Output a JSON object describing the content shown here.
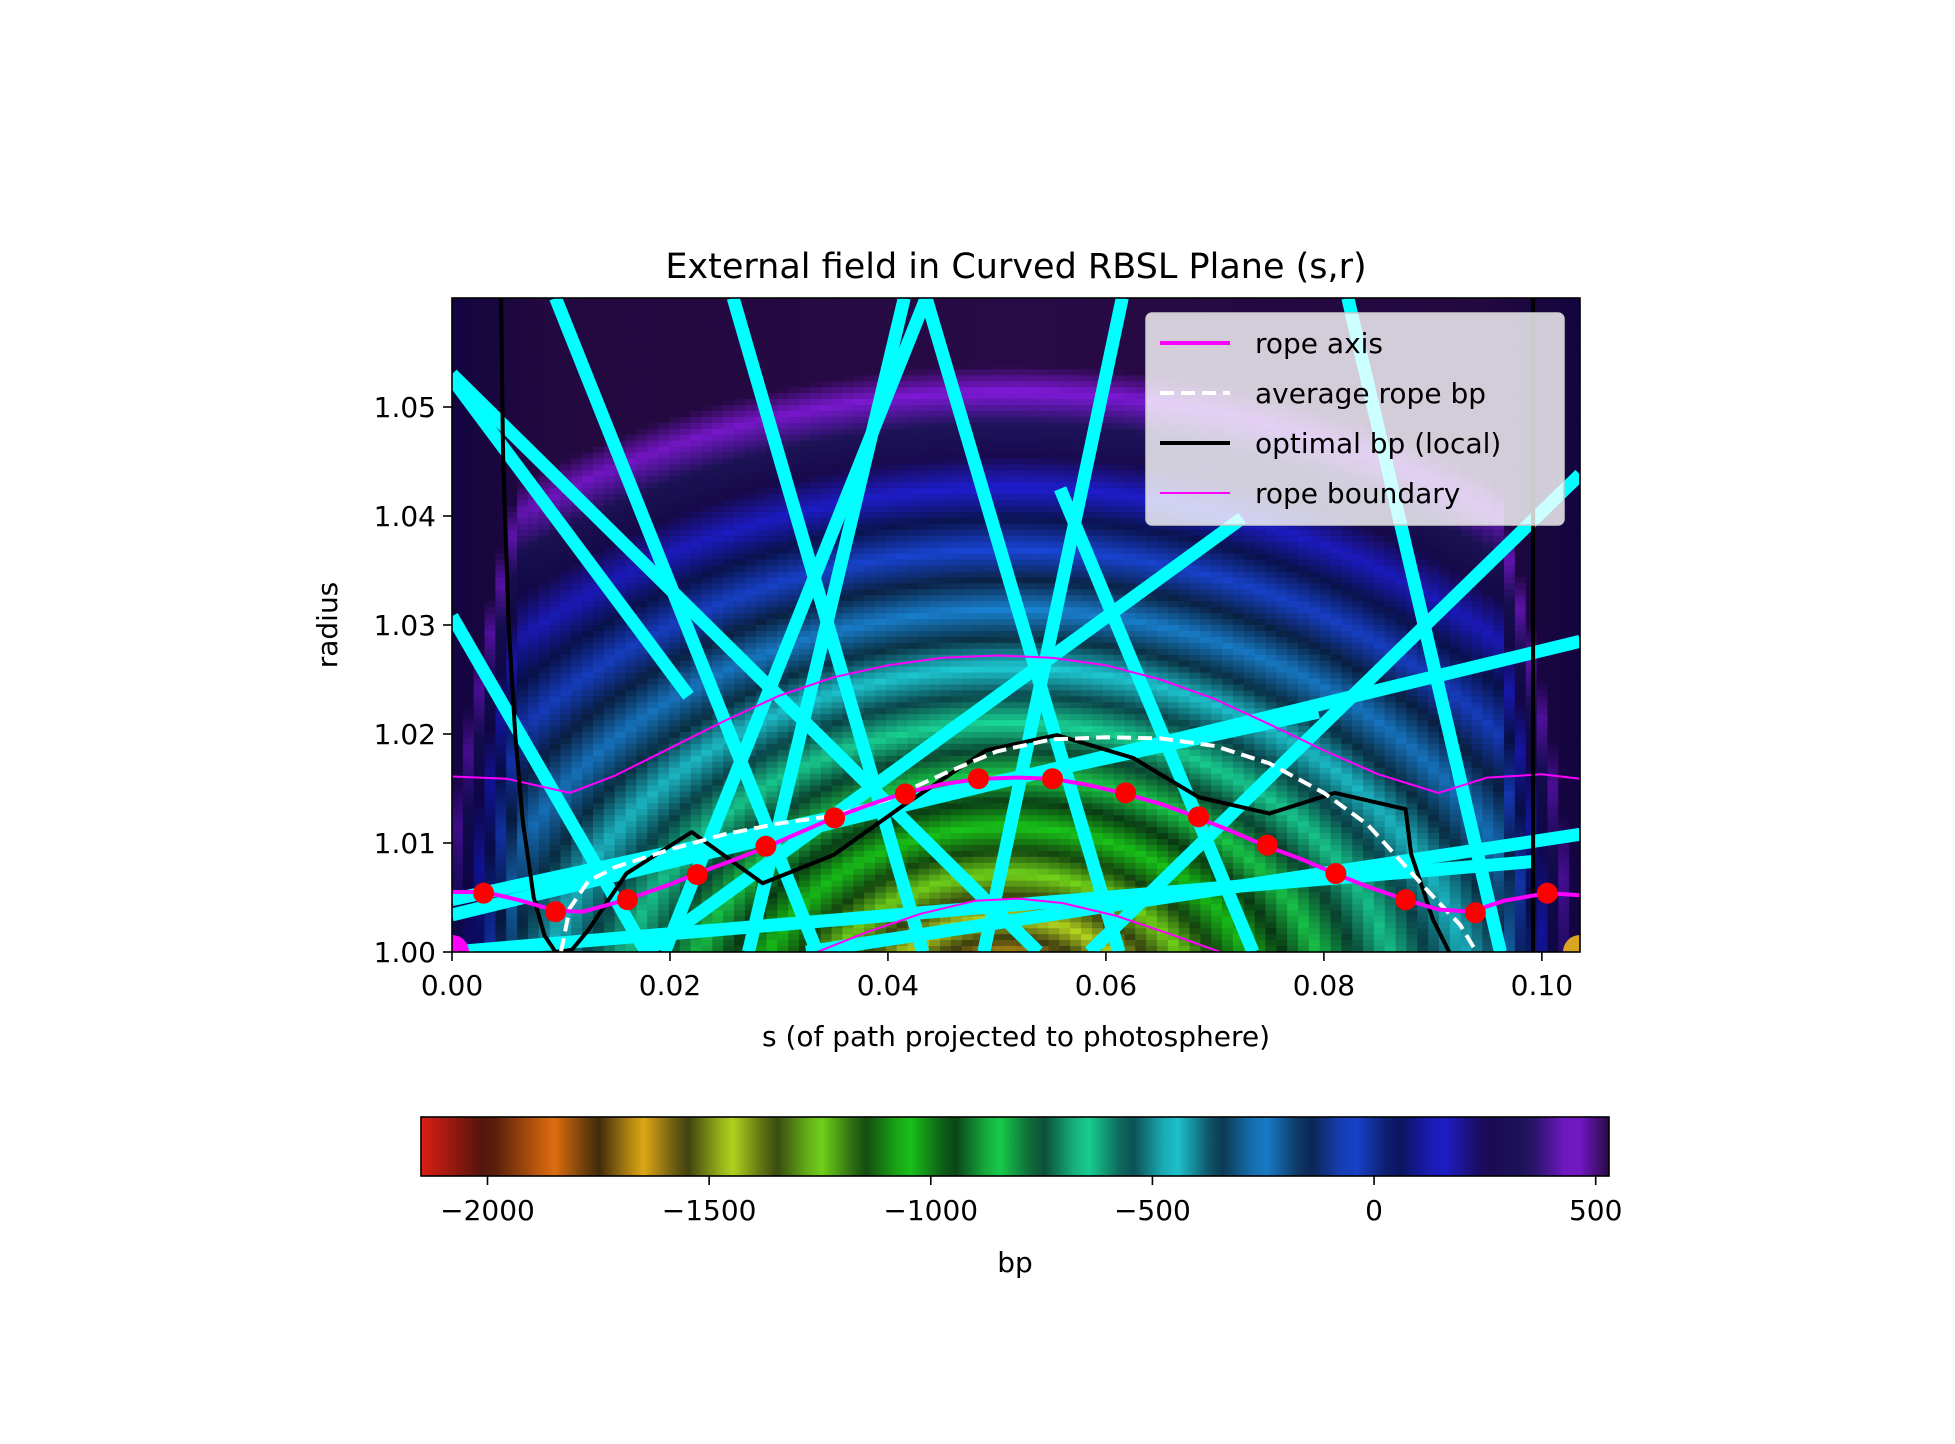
{
  "chart_data": {
    "type": "heatmap",
    "title": "External field in Curved RBSL Plane (s,r)",
    "xlabel": "s (of path projected to photosphere)",
    "ylabel": "radius",
    "xlim": [
      0.0,
      0.1035
    ],
    "ylim": [
      1.0,
      1.06
    ],
    "xticks": [
      0.0,
      0.02,
      0.04,
      0.06,
      0.08,
      0.1
    ],
    "xtick_labels": [
      "0.00",
      "0.02",
      "0.04",
      "0.06",
      "0.08",
      "0.10"
    ],
    "yticks": [
      1.0,
      1.01,
      1.02,
      1.03,
      1.04,
      1.05
    ],
    "ytick_labels": [
      "1.00",
      "1.01",
      "1.02",
      "1.03",
      "1.04",
      "1.05"
    ],
    "grid": false,
    "legend_position": "upper right",
    "legend": [
      {
        "label": "rope axis",
        "color": "#ff00ff",
        "style": "solid"
      },
      {
        "label": "average rope bp",
        "color": "#ffffff",
        "style": "dashed"
      },
      {
        "label": "optimal bp (local)",
        "color": "#000000",
        "style": "solid"
      },
      {
        "label": "rope boundary",
        "color": "#ff00ff",
        "style": "thin"
      }
    ],
    "colorbar": {
      "label": "bp",
      "range": [
        -2150,
        530
      ],
      "ticks": [
        -2000,
        -1500,
        -1000,
        -500,
        0,
        500
      ],
      "tick_labels": [
        "−2000",
        "−1500",
        "−1000",
        "−500",
        "0",
        "500"
      ],
      "colormap": "banded gist_ncar-like (red → orange → yellow → green → cyan → blue → purple)"
    },
    "series": [
      {
        "name": "rope axis",
        "color": "#ff00ff",
        "x": [
          0.0,
          0.003,
          0.006,
          0.0095,
          0.012,
          0.016,
          0.02,
          0.0225,
          0.026,
          0.029,
          0.032,
          0.035,
          0.038,
          0.0415,
          0.045,
          0.0485,
          0.052,
          0.055,
          0.058,
          0.0615,
          0.065,
          0.068,
          0.0715,
          0.0745,
          0.078,
          0.081,
          0.084,
          0.0875,
          0.0905,
          0.0935,
          0.0965,
          0.1005,
          0.1035
        ],
        "y": [
          1.0055,
          1.0055,
          1.0048,
          1.0038,
          1.0037,
          1.0048,
          1.0062,
          1.0072,
          1.0085,
          1.0097,
          1.011,
          1.0123,
          1.0134,
          1.0146,
          1.0154,
          1.0159,
          1.016,
          1.0159,
          1.0154,
          1.0146,
          1.0136,
          1.0125,
          1.0111,
          1.0098,
          1.0085,
          1.0072,
          1.006,
          1.0048,
          1.0039,
          1.0037,
          1.0047,
          1.0054,
          1.0052
        ]
      },
      {
        "name": "rope axis samples",
        "color": "#ff0000",
        "x": [
          0.0029,
          0.0095,
          0.0161,
          0.0225,
          0.0288,
          0.0351,
          0.0416,
          0.0483,
          0.0551,
          0.0618,
          0.0685,
          0.0748,
          0.0811,
          0.0875,
          0.0939,
          0.1005
        ],
        "y": [
          1.0054,
          1.0037,
          1.0048,
          1.0071,
          1.0097,
          1.0123,
          1.0145,
          1.0159,
          1.0159,
          1.0146,
          1.0124,
          1.0098,
          1.0072,
          1.0048,
          1.0036,
          1.0054
        ]
      },
      {
        "name": "average rope bp",
        "color": "#ffffff",
        "x": [
          0.01,
          0.0108,
          0.0125,
          0.015,
          0.02,
          0.025,
          0.03,
          0.035,
          0.04,
          0.045,
          0.05,
          0.055,
          0.06,
          0.065,
          0.07,
          0.075,
          0.08,
          0.084,
          0.087,
          0.09,
          0.0925,
          0.094
        ],
        "y": [
          1.0,
          1.004,
          1.0065,
          1.0078,
          1.0094,
          1.0108,
          1.0118,
          1.0125,
          1.014,
          1.0163,
          1.0184,
          1.0195,
          1.0197,
          1.0196,
          1.0189,
          1.0173,
          1.0146,
          1.0117,
          1.0084,
          1.0051,
          1.0025,
          1.0
        ]
      },
      {
        "name": "optimal bp (local)",
        "color": "#000000",
        "x": [
          0.0045,
          0.0047,
          0.0052,
          0.0058,
          0.0065,
          0.0075,
          0.0085,
          0.0095,
          0.011,
          0.0125,
          0.016,
          0.022,
          0.0285,
          0.035,
          0.0415,
          0.049,
          0.0555,
          0.0625,
          0.0685,
          0.075,
          0.081,
          0.0875,
          0.088,
          0.09,
          0.0915
        ],
        "y": [
          1.06,
          1.045,
          1.03,
          1.02,
          1.012,
          1.005,
          1.0015,
          1.0,
          1.0002,
          1.002,
          1.0072,
          1.011,
          1.0063,
          1.0089,
          1.0135,
          1.0185,
          1.0199,
          1.0178,
          1.0142,
          1.0127,
          1.0146,
          1.0131,
          1.009,
          1.003,
          1.0
        ]
      },
      {
        "name": "optimal bp (local) right",
        "color": "#000000",
        "x": [
          0.0992,
          0.0992
        ],
        "y": [
          1.0,
          1.06
        ]
      },
      {
        "name": "rope boundary",
        "color": "#ff00ff",
        "x": [
          0.0,
          0.005,
          0.0108,
          0.015,
          0.02,
          0.025,
          0.03,
          0.035,
          0.04,
          0.045,
          0.05,
          0.055,
          0.06,
          0.065,
          0.07,
          0.075,
          0.08,
          0.085,
          0.0905,
          0.095,
          0.1,
          0.1035
        ],
        "y": [
          1.0161,
          1.0159,
          1.0146,
          1.0162,
          1.0187,
          1.0212,
          1.0235,
          1.0252,
          1.0263,
          1.027,
          1.0272,
          1.027,
          1.0263,
          1.025,
          1.0232,
          1.0209,
          1.0185,
          1.0163,
          1.0146,
          1.016,
          1.0163,
          1.0159
        ]
      },
      {
        "name": "rope boundary lower",
        "color": "#ff00ff",
        "x": [
          0.0335,
          0.038,
          0.043,
          0.048,
          0.052,
          0.056,
          0.061,
          0.066,
          0.0705
        ],
        "y": [
          1.0,
          1.0018,
          1.0035,
          1.0047,
          1.0049,
          1.0045,
          1.0033,
          1.0016,
          1.0
        ]
      },
      {
        "name": "field line segments",
        "color": "#00ffff",
        "segments": [
          [
            [
              0.0,
              1.0526
            ],
            [
              0.0217,
              1.0235
            ]
          ],
          [
            [
              0.0,
              1.0308
            ],
            [
              0.0178,
              1.0
            ]
          ],
          [
            [
              0.0095,
              1.06
            ],
            [
              0.0335,
              1.0
            ]
          ],
          [
            [
              0.0415,
              1.06
            ],
            [
              0.0272,
              1.0
            ]
          ],
          [
            [
              0.0258,
              1.06
            ],
            [
              0.0432,
              1.0
            ]
          ],
          [
            [
              0.0435,
              1.06
            ],
            [
              0.0612,
              1.0
            ]
          ],
          [
            [
              0.0435,
              1.06
            ],
            [
              0.0195,
              1.0
            ]
          ],
          [
            [
              0.0615,
              1.06
            ],
            [
              0.0488,
              1.0
            ]
          ],
          [
            [
              0.0558,
              1.0425
            ],
            [
              0.0735,
              1.0
            ]
          ],
          [
            [
              0.0178,
              1.0
            ],
            [
              0.0725,
              1.0398
            ]
          ],
          [
            [
              0.0,
              1.053
            ],
            [
              0.0538,
              1.0
            ]
          ],
          [
            [
              0.0822,
              1.06
            ],
            [
              0.0962,
              1.0
            ]
          ],
          [
            [
              0.0,
              1.0034
            ],
            [
              0.1035,
              1.0285
            ]
          ],
          [
            [
              0.0,
              1.0048
            ],
            [
              0.0795,
              1.022
            ]
          ],
          [
            [
              0.0325,
              1.0
            ],
            [
              0.1035,
              1.0108
            ]
          ],
          [
            [
              0.0,
              1.0
            ],
            [
              0.0992,
              1.0083
            ]
          ],
          [
            [
              0.0585,
              1.0
            ],
            [
              0.1035,
              1.0438
            ]
          ]
        ]
      }
    ],
    "corner_markers": [
      {
        "x": 0.0,
        "y": 1.0,
        "color": "#ff00ff"
      },
      {
        "x": 0.1035,
        "y": 1.0,
        "color": "#daa520"
      }
    ]
  }
}
